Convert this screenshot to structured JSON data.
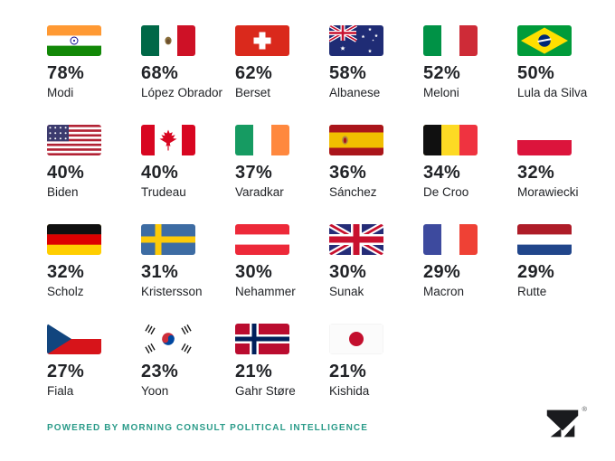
{
  "page": {
    "background": "#ffffff"
  },
  "grid": {
    "leaders": [
      {
        "pct": "78%",
        "name": "Modi",
        "flag": "india"
      },
      {
        "pct": "68%",
        "name": "López Obrador",
        "flag": "mexico"
      },
      {
        "pct": "62%",
        "name": "Berset",
        "flag": "switzerland"
      },
      {
        "pct": "58%",
        "name": "Albanese",
        "flag": "australia"
      },
      {
        "pct": "52%",
        "name": "Meloni",
        "flag": "italy"
      },
      {
        "pct": "50%",
        "name": "Lula da Silva",
        "flag": "brazil"
      },
      {
        "pct": "40%",
        "name": "Biden",
        "flag": "usa"
      },
      {
        "pct": "40%",
        "name": "Trudeau",
        "flag": "canada"
      },
      {
        "pct": "37%",
        "name": "Varadkar",
        "flag": "ireland"
      },
      {
        "pct": "36%",
        "name": "Sánchez",
        "flag": "spain"
      },
      {
        "pct": "34%",
        "name": "De Croo",
        "flag": "belgium"
      },
      {
        "pct": "32%",
        "name": "Morawiecki",
        "flag": "poland"
      },
      {
        "pct": "32%",
        "name": "Scholz",
        "flag": "germany"
      },
      {
        "pct": "31%",
        "name": "Kristersson",
        "flag": "sweden"
      },
      {
        "pct": "30%",
        "name": "Nehammer",
        "flag": "austria"
      },
      {
        "pct": "30%",
        "name": "Sunak",
        "flag": "uk"
      },
      {
        "pct": "29%",
        "name": "Macron",
        "flag": "france"
      },
      {
        "pct": "29%",
        "name": "Rutte",
        "flag": "netherlands"
      },
      {
        "pct": "27%",
        "name": "Fiala",
        "flag": "czechia"
      },
      {
        "pct": "23%",
        "name": "Yoon",
        "flag": "south-korea"
      },
      {
        "pct": "21%",
        "name": "Gahr Støre",
        "flag": "norway"
      },
      {
        "pct": "21%",
        "name": "Kishida",
        "flag": "japan"
      }
    ]
  },
  "footer": {
    "credit": "POWERED BY MORNING CONSULT POLITICAL INTELLIGENCE",
    "registered": "®",
    "logo_icon": "morning-consult-m-logo"
  },
  "colors": {
    "accent_teal": "#2A9B89",
    "text": "#212327",
    "logo_black": "#1A1B1E",
    "background": "#ffffff"
  },
  "chart_data": {
    "type": "table",
    "title": "",
    "value_format": "percent",
    "categories": [
      "Modi",
      "López Obrador",
      "Berset",
      "Albanese",
      "Meloni",
      "Lula da Silva",
      "Biden",
      "Trudeau",
      "Varadkar",
      "Sánchez",
      "De Croo",
      "Morawiecki",
      "Scholz",
      "Kristersson",
      "Nehammer",
      "Sunak",
      "Macron",
      "Rutte",
      "Fiala",
      "Yoon",
      "Gahr Støre",
      "Kishida"
    ],
    "values": [
      78,
      68,
      62,
      58,
      52,
      50,
      40,
      40,
      37,
      36,
      34,
      32,
      32,
      31,
      30,
      30,
      29,
      29,
      27,
      23,
      21,
      21
    ],
    "flag_icons": [
      "india",
      "mexico",
      "switzerland",
      "australia",
      "italy",
      "brazil",
      "usa",
      "canada",
      "ireland",
      "spain",
      "belgium",
      "poland",
      "germany",
      "sweden",
      "austria",
      "uk",
      "france",
      "netherlands",
      "czechia",
      "south-korea",
      "norway",
      "japan"
    ],
    "layout": {
      "columns": 6,
      "rows": 4,
      "grid_on": false,
      "legend": "none"
    },
    "source": "POWERED BY MORNING CONSULT POLITICAL INTELLIGENCE"
  }
}
